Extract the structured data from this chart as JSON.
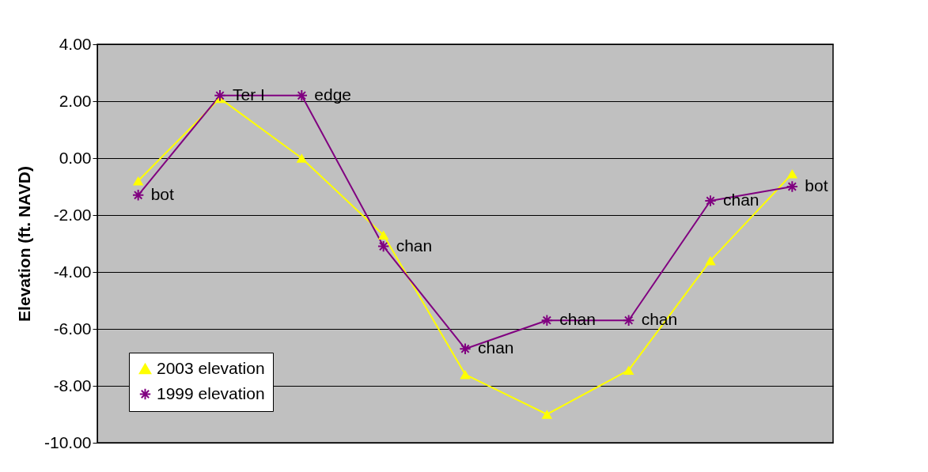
{
  "chart_data": {
    "type": "line",
    "ylabel": "Elevation (ft. NAVD)",
    "categories": [
      null,
      null,
      null,
      null,
      null,
      null,
      null,
      null,
      null
    ],
    "series": [
      {
        "name": "2003 elevation",
        "color": "#ffff00",
        "marker": "triangle",
        "values": [
          -0.8,
          2.1,
          0.0,
          -2.7,
          -7.6,
          -9.0,
          -7.45,
          -3.6,
          -0.55
        ]
      },
      {
        "name": "1999 elevation",
        "color": "#800080",
        "marker": "cross",
        "values": [
          -1.3,
          2.2,
          2.2,
          -3.1,
          -6.7,
          -5.7,
          -5.7,
          -1.5,
          -1.0
        ],
        "value_labels": [
          "bot",
          "Ter I",
          "edge",
          "chan",
          "chan",
          "chan",
          "chan",
          "chan",
          "bot"
        ]
      }
    ],
    "ylim": [
      -10,
      4
    ],
    "yticks": [
      {
        "value": -10,
        "label": "-10.00"
      },
      {
        "value": -8,
        "label": "-8.00"
      },
      {
        "value": -6,
        "label": "-6.00"
      },
      {
        "value": -4,
        "label": "-4.00"
      },
      {
        "value": -2,
        "label": "-2.00"
      },
      {
        "value": 0,
        "label": "0.00"
      },
      {
        "value": 2,
        "label": "2.00"
      },
      {
        "value": 4,
        "label": "4.00"
      }
    ],
    "grid": "y",
    "legend": "bottom left",
    "tick_labels": "y",
    "line_style": "solid"
  }
}
